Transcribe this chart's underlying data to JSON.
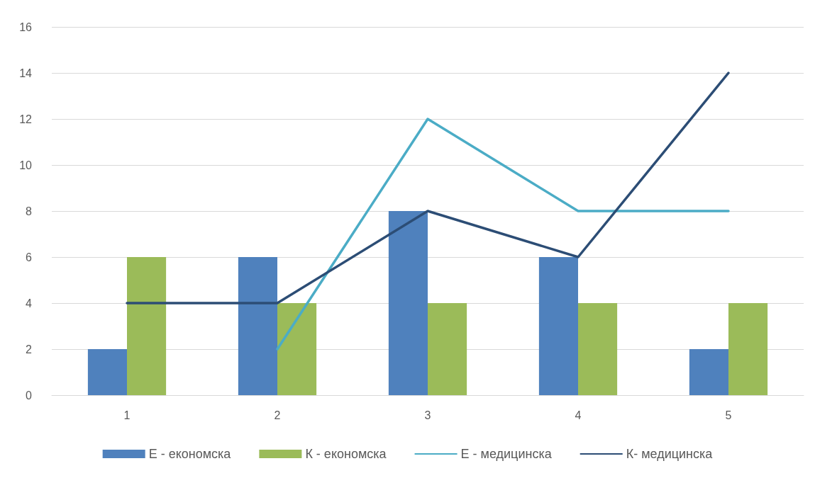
{
  "chart_data": {
    "type": "bar",
    "categories": [
      "1",
      "2",
      "3",
      "4",
      "5"
    ],
    "series": [
      {
        "name": "Е - економска",
        "color": "#4f81bd",
        "values": [
          2,
          6,
          8,
          6,
          2
        ]
      },
      {
        "name": "К - економска",
        "color": "#9bbb59",
        "values": [
          6,
          4,
          4,
          4,
          4
        ]
      },
      {
        "name": "Е - медицинска",
        "type": "line",
        "color": "#4bacc6",
        "values": [
          null,
          2,
          12,
          8,
          8
        ]
      },
      {
        "name": "К- медицинска",
        "type": "line",
        "color": "#2c4d75",
        "values": [
          4,
          4,
          8,
          6,
          14
        ]
      }
    ],
    "ylim": [
      0,
      16
    ],
    "yticks": [
      0,
      2,
      4,
      6,
      8,
      10,
      12,
      14,
      16
    ],
    "grid": "y",
    "legend": "bottom",
    "marker": "none",
    "line_style": "solid"
  }
}
